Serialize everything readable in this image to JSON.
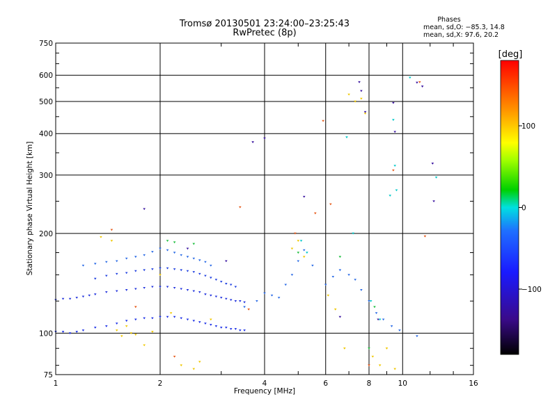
{
  "chart_data": {
    "type": "scatter",
    "title": "Tromsø 20130501 23:24:00–23:25:43",
    "subtitle": "RwPretec (8p)",
    "xlabel": "Frequency [MHz]",
    "ylabel": "Stationary phase Virtual Height [km]",
    "x_scale": "log",
    "y_scale": "log",
    "xlim": [
      1,
      16
    ],
    "ylim": [
      75,
      750
    ],
    "x_ticks": [
      1,
      2,
      4,
      6,
      8,
      10,
      16
    ],
    "x_tick_labels": [
      "1",
      "2",
      "4",
      "6",
      "8",
      "10",
      "16"
    ],
    "y_ticks": [
      75,
      100,
      200,
      300,
      400,
      500,
      600,
      750
    ],
    "y_tick_labels": [
      "75",
      "100",
      "200",
      "300",
      "400",
      "500",
      "600",
      "750"
    ],
    "grid": true,
    "stats": {
      "heading": "Phases",
      "line1": "mean, sd,O: −85.3, 14.8",
      "line2": "mean, sd,X:  97.6, 20.2"
    },
    "colorbar": {
      "label": "[deg]",
      "range": [
        -180,
        180
      ],
      "ticks": [
        100,
        0,
        -100
      ],
      "tick_labels": [
        "100",
        "0",
        "−100"
      ]
    },
    "series": [
      {
        "phase": -90,
        "color": "#1a2ee6",
        "x": [
          1.0,
          1.05,
          1.1,
          1.15,
          1.2,
          1.3,
          1.4,
          1.5,
          1.6,
          1.7,
          1.8,
          1.9,
          2.0,
          2.1,
          2.2,
          2.3,
          2.4,
          2.5,
          2.6,
          2.7,
          2.8,
          2.9,
          3.0,
          3.1,
          3.2,
          3.3,
          3.4,
          3.5
        ],
        "y": [
          101,
          101,
          100,
          101,
          102,
          104,
          105,
          107,
          109,
          110,
          111,
          111,
          112,
          112,
          112,
          111,
          110,
          109,
          108,
          107,
          106,
          105,
          104,
          104,
          103,
          103,
          102,
          102
        ]
      },
      {
        "phase": -95,
        "color": "#2233dd",
        "x": [
          1.0,
          1.05,
          1.1,
          1.15,
          1.2,
          1.25,
          1.3,
          1.4,
          1.5,
          1.6,
          1.7,
          1.8,
          1.9,
          2.0,
          2.1,
          2.2,
          2.3,
          2.4,
          2.5,
          2.6,
          2.7,
          2.8,
          2.9,
          3.0,
          3.1,
          3.2,
          3.3,
          3.4,
          3.5
        ],
        "y": [
          126,
          127,
          127,
          128,
          129,
          130,
          131,
          133,
          134,
          135,
          136,
          137,
          138,
          138,
          138,
          137,
          136,
          135,
          134,
          133,
          131,
          130,
          129,
          128,
          127,
          126,
          125,
          125,
          124
        ]
      },
      {
        "phase": -100,
        "color": "#1f3fe0",
        "x": [
          1.3,
          1.4,
          1.5,
          1.6,
          1.7,
          1.8,
          1.9,
          2.0,
          2.1,
          2.2,
          2.3,
          2.4,
          2.5,
          2.6,
          2.7,
          2.8,
          2.9,
          3.0,
          3.1,
          3.2,
          3.3
        ],
        "y": [
          146,
          149,
          151,
          152,
          154,
          155,
          156,
          157,
          157,
          156,
          155,
          154,
          153,
          151,
          149,
          147,
          145,
          143,
          141,
          140,
          138
        ]
      },
      {
        "phase": -80,
        "color": "#2a6be6",
        "x": [
          1.2,
          1.3,
          1.4,
          1.5,
          1.6,
          1.7,
          1.8,
          1.9,
          2.0,
          2.1,
          2.2,
          2.3,
          2.4,
          2.5,
          2.6,
          2.7,
          2.8,
          3.5,
          3.8,
          4.0,
          4.2,
          4.4,
          4.6,
          4.8,
          5.0,
          5.2,
          5.5,
          6.0,
          6.3,
          6.6,
          7.0,
          7.3,
          7.6,
          8.0,
          8.4,
          8.8,
          9.3,
          9.8,
          11.0
        ],
        "y": [
          160,
          162,
          164,
          165,
          168,
          170,
          172,
          176,
          180,
          178,
          175,
          172,
          170,
          168,
          166,
          164,
          160,
          120,
          125,
          132,
          130,
          128,
          140,
          150,
          165,
          178,
          160,
          140,
          148,
          155,
          150,
          145,
          135,
          125,
          115,
          110,
          105,
          102,
          98
        ]
      },
      {
        "phase": 100,
        "color": "#f0c800",
        "x": [
          1.35,
          1.45,
          1.5,
          1.55,
          1.6,
          1.65,
          1.7,
          1.8,
          1.9,
          2.0,
          2.15,
          2.3,
          2.5,
          2.6,
          2.8,
          4.8,
          5.0,
          5.2,
          6.1,
          6.4,
          6.8,
          7.0,
          7.3,
          7.6,
          7.8,
          8.2,
          8.6,
          9.0,
          9.5
        ],
        "y": [
          195,
          190,
          102,
          98,
          105,
          100,
          99,
          92,
          101,
          150,
          115,
          80,
          78,
          82,
          110,
          180,
          190,
          170,
          130,
          118,
          90,
          525,
          500,
          510,
          460,
          85,
          80,
          90,
          78
        ]
      },
      {
        "phase": 150,
        "color": "#e65a1a",
        "x": [
          1.45,
          1.7,
          2.2,
          3.4,
          3.6,
          4.9,
          5.6,
          5.9,
          6.2,
          8.0,
          9.4,
          11.2,
          11.6
        ],
        "y": [
          205,
          120,
          85,
          240,
          118,
          200,
          230,
          437,
          245,
          80,
          310,
          572,
          196
        ]
      },
      {
        "phase": -130,
        "color": "#3a14a0",
        "x": [
          1.8,
          2.4,
          3.1,
          3.7,
          4.0,
          5.2,
          6.6,
          7.5,
          7.6,
          7.8,
          8.5,
          9.4,
          9.5,
          11.0,
          11.4,
          12.2,
          12.3
        ],
        "y": [
          237,
          180,
          165,
          377,
          387,
          258,
          112,
          572,
          538,
          465,
          110,
          495,
          405,
          570,
          555,
          325,
          250
        ]
      },
      {
        "phase": -20,
        "color": "#00c8c8",
        "x": [
          5.1,
          5.3,
          6.9,
          7.2,
          8.1,
          8.6,
          9.2,
          9.4,
          9.5,
          9.6,
          10.5,
          12.5
        ],
        "y": [
          190,
          175,
          390,
          200,
          125,
          110,
          260,
          440,
          320,
          270,
          590,
          295
        ]
      },
      {
        "phase": 0,
        "color": "#20c040",
        "x": [
          2.1,
          2.2,
          2.5,
          5.0,
          6.6,
          8.0,
          8.3
        ],
        "y": [
          190,
          188,
          186,
          175,
          170,
          90,
          120
        ]
      }
    ]
  }
}
